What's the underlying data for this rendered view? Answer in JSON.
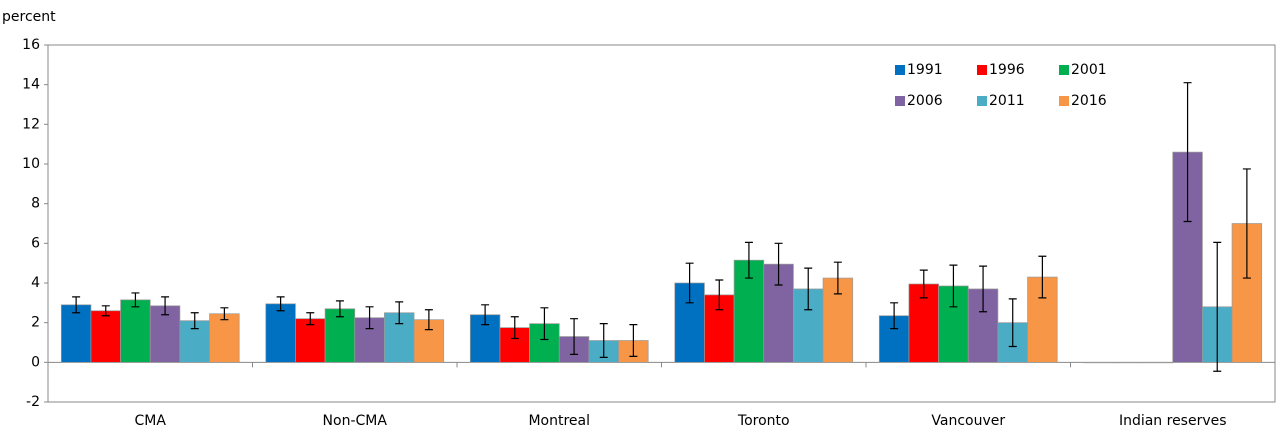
{
  "chart_data": {
    "type": "bar",
    "y_label": "percent",
    "categories": [
      "CMA",
      "Non-CMA",
      "Montreal",
      "Toronto",
      "Vancouver",
      "Indian reserves"
    ],
    "series": [
      {
        "name": "1991",
        "color": "#0070c0",
        "values": [
          2.9,
          2.95,
          2.4,
          4.0,
          2.35,
          0
        ],
        "errors": [
          0.4,
          0.35,
          0.5,
          1.0,
          0.65,
          null
        ]
      },
      {
        "name": "1996",
        "color": "#ff0000",
        "values": [
          2.6,
          2.2,
          1.75,
          3.4,
          3.95,
          0
        ],
        "errors": [
          0.25,
          0.3,
          0.55,
          0.75,
          0.7,
          null
        ]
      },
      {
        "name": "2001",
        "color": "#00b050",
        "values": [
          3.15,
          2.7,
          1.95,
          5.15,
          3.85,
          0
        ],
        "errors": [
          0.35,
          0.4,
          0.8,
          0.9,
          1.05,
          null
        ]
      },
      {
        "name": "2006",
        "color": "#8064a2",
        "values": [
          2.85,
          2.25,
          1.3,
          4.95,
          3.7,
          10.6
        ],
        "errors": [
          0.45,
          0.55,
          0.9,
          1.05,
          1.15,
          3.5
        ]
      },
      {
        "name": "2011",
        "color": "#4bacc6",
        "values": [
          2.1,
          2.5,
          1.1,
          3.7,
          2.0,
          2.8
        ],
        "errors": [
          0.4,
          0.55,
          0.85,
          1.05,
          1.2,
          3.25
        ]
      },
      {
        "name": "2016",
        "color": "#f79646",
        "values": [
          2.45,
          2.15,
          1.1,
          4.25,
          4.3,
          7.0
        ],
        "errors": [
          0.3,
          0.5,
          0.8,
          0.8,
          1.05,
          2.75
        ]
      }
    ],
    "ylim": [
      -2,
      16
    ],
    "yticks": [
      -2,
      0,
      2,
      4,
      6,
      8,
      10,
      12,
      14,
      16
    ],
    "grid": false,
    "legend": "upper right"
  }
}
